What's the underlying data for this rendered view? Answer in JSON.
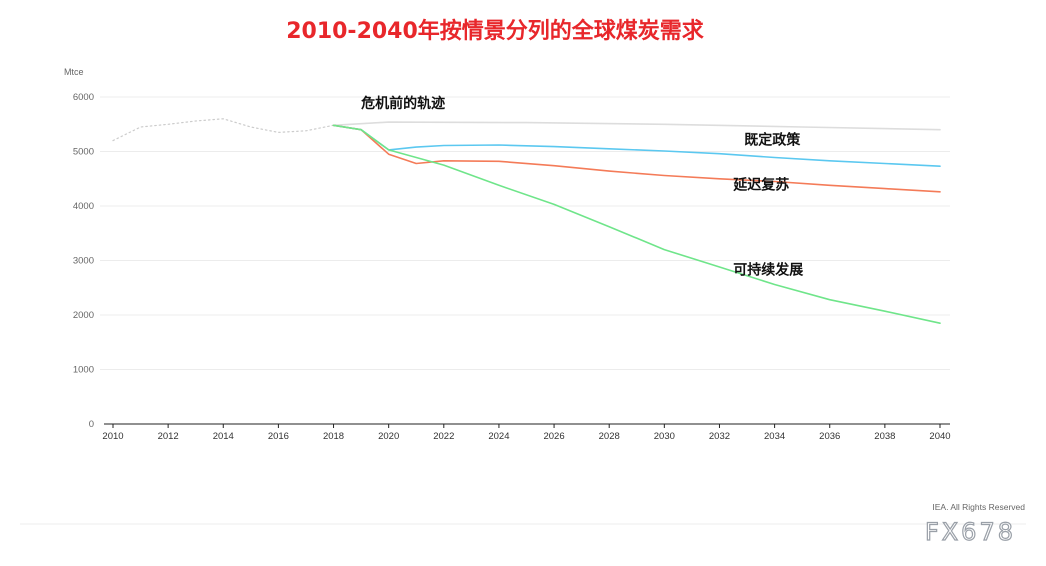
{
  "chart_data": {
    "type": "line",
    "title": "2010-2040年按情景分列的全球煤炭需求",
    "yunit": "Mtce",
    "ylim": [
      0,
      6000
    ],
    "yticks": [
      0,
      1000,
      2000,
      3000,
      4000,
      5000,
      6000
    ],
    "xlim": [
      2010,
      2040
    ],
    "xticks": [
      2010,
      2012,
      2014,
      2016,
      2018,
      2020,
      2022,
      2024,
      2026,
      2028,
      2030,
      2032,
      2034,
      2036,
      2038,
      2040
    ],
    "grid": true,
    "series": [
      {
        "id": "historical",
        "name": "",
        "style": "dotted",
        "color": "#cccccc",
        "x": [
          2010,
          2011,
          2012,
          2013,
          2014,
          2015,
          2016,
          2017,
          2018
        ],
        "y": [
          5200,
          5450,
          5500,
          5560,
          5600,
          5450,
          5350,
          5380,
          5480
        ]
      },
      {
        "id": "pre-crisis",
        "name": "危机前的轨迹",
        "color": "#dddddd",
        "x": [
          2018,
          2020,
          2025,
          2030,
          2035,
          2040
        ],
        "y": [
          5480,
          5540,
          5530,
          5500,
          5450,
          5400
        ]
      },
      {
        "id": "stated-policies",
        "name": "既定政策",
        "color": "#5bc8f0",
        "x": [
          2018,
          2019,
          2020,
          2021,
          2022,
          2024,
          2026,
          2028,
          2030,
          2032,
          2034,
          2036,
          2038,
          2040
        ],
        "y": [
          5480,
          5400,
          5030,
          5080,
          5110,
          5120,
          5090,
          5050,
          5010,
          4960,
          4890,
          4830,
          4780,
          4730
        ]
      },
      {
        "id": "delayed-recovery",
        "name": "延迟复苏",
        "color": "#f47b58",
        "x": [
          2018,
          2019,
          2020,
          2021,
          2022,
          2024,
          2026,
          2028,
          2030,
          2032,
          2034,
          2036,
          2038,
          2040
        ],
        "y": [
          5480,
          5400,
          4950,
          4780,
          4830,
          4820,
          4740,
          4640,
          4560,
          4500,
          4450,
          4380,
          4320,
          4260
        ]
      },
      {
        "id": "sustainable-development",
        "name": "可持续发展",
        "color": "#6fe58a",
        "x": [
          2018,
          2019,
          2020,
          2022,
          2024,
          2026,
          2028,
          2030,
          2032,
          2034,
          2036,
          2038,
          2040
        ],
        "y": [
          5480,
          5400,
          5030,
          4750,
          4380,
          4030,
          3620,
          3200,
          2880,
          2560,
          2280,
          2070,
          1850
        ]
      }
    ],
    "annotations": [
      {
        "series": "pre-crisis",
        "text": "危机前的轨迹",
        "x": 2019.0,
        "y": 5800
      },
      {
        "series": "stated-policies",
        "text": "既定政策",
        "x": 2032.9,
        "y": 5130
      },
      {
        "series": "delayed-recovery",
        "text": "延迟复苏",
        "x": 2032.5,
        "y": 4300
      },
      {
        "series": "sustainable-development",
        "text": "可持续发展",
        "x": 2032.5,
        "y": 2740
      }
    ]
  },
  "footer": {
    "credit": "IEA. All Rights Reserved",
    "watermark": "FX678"
  }
}
